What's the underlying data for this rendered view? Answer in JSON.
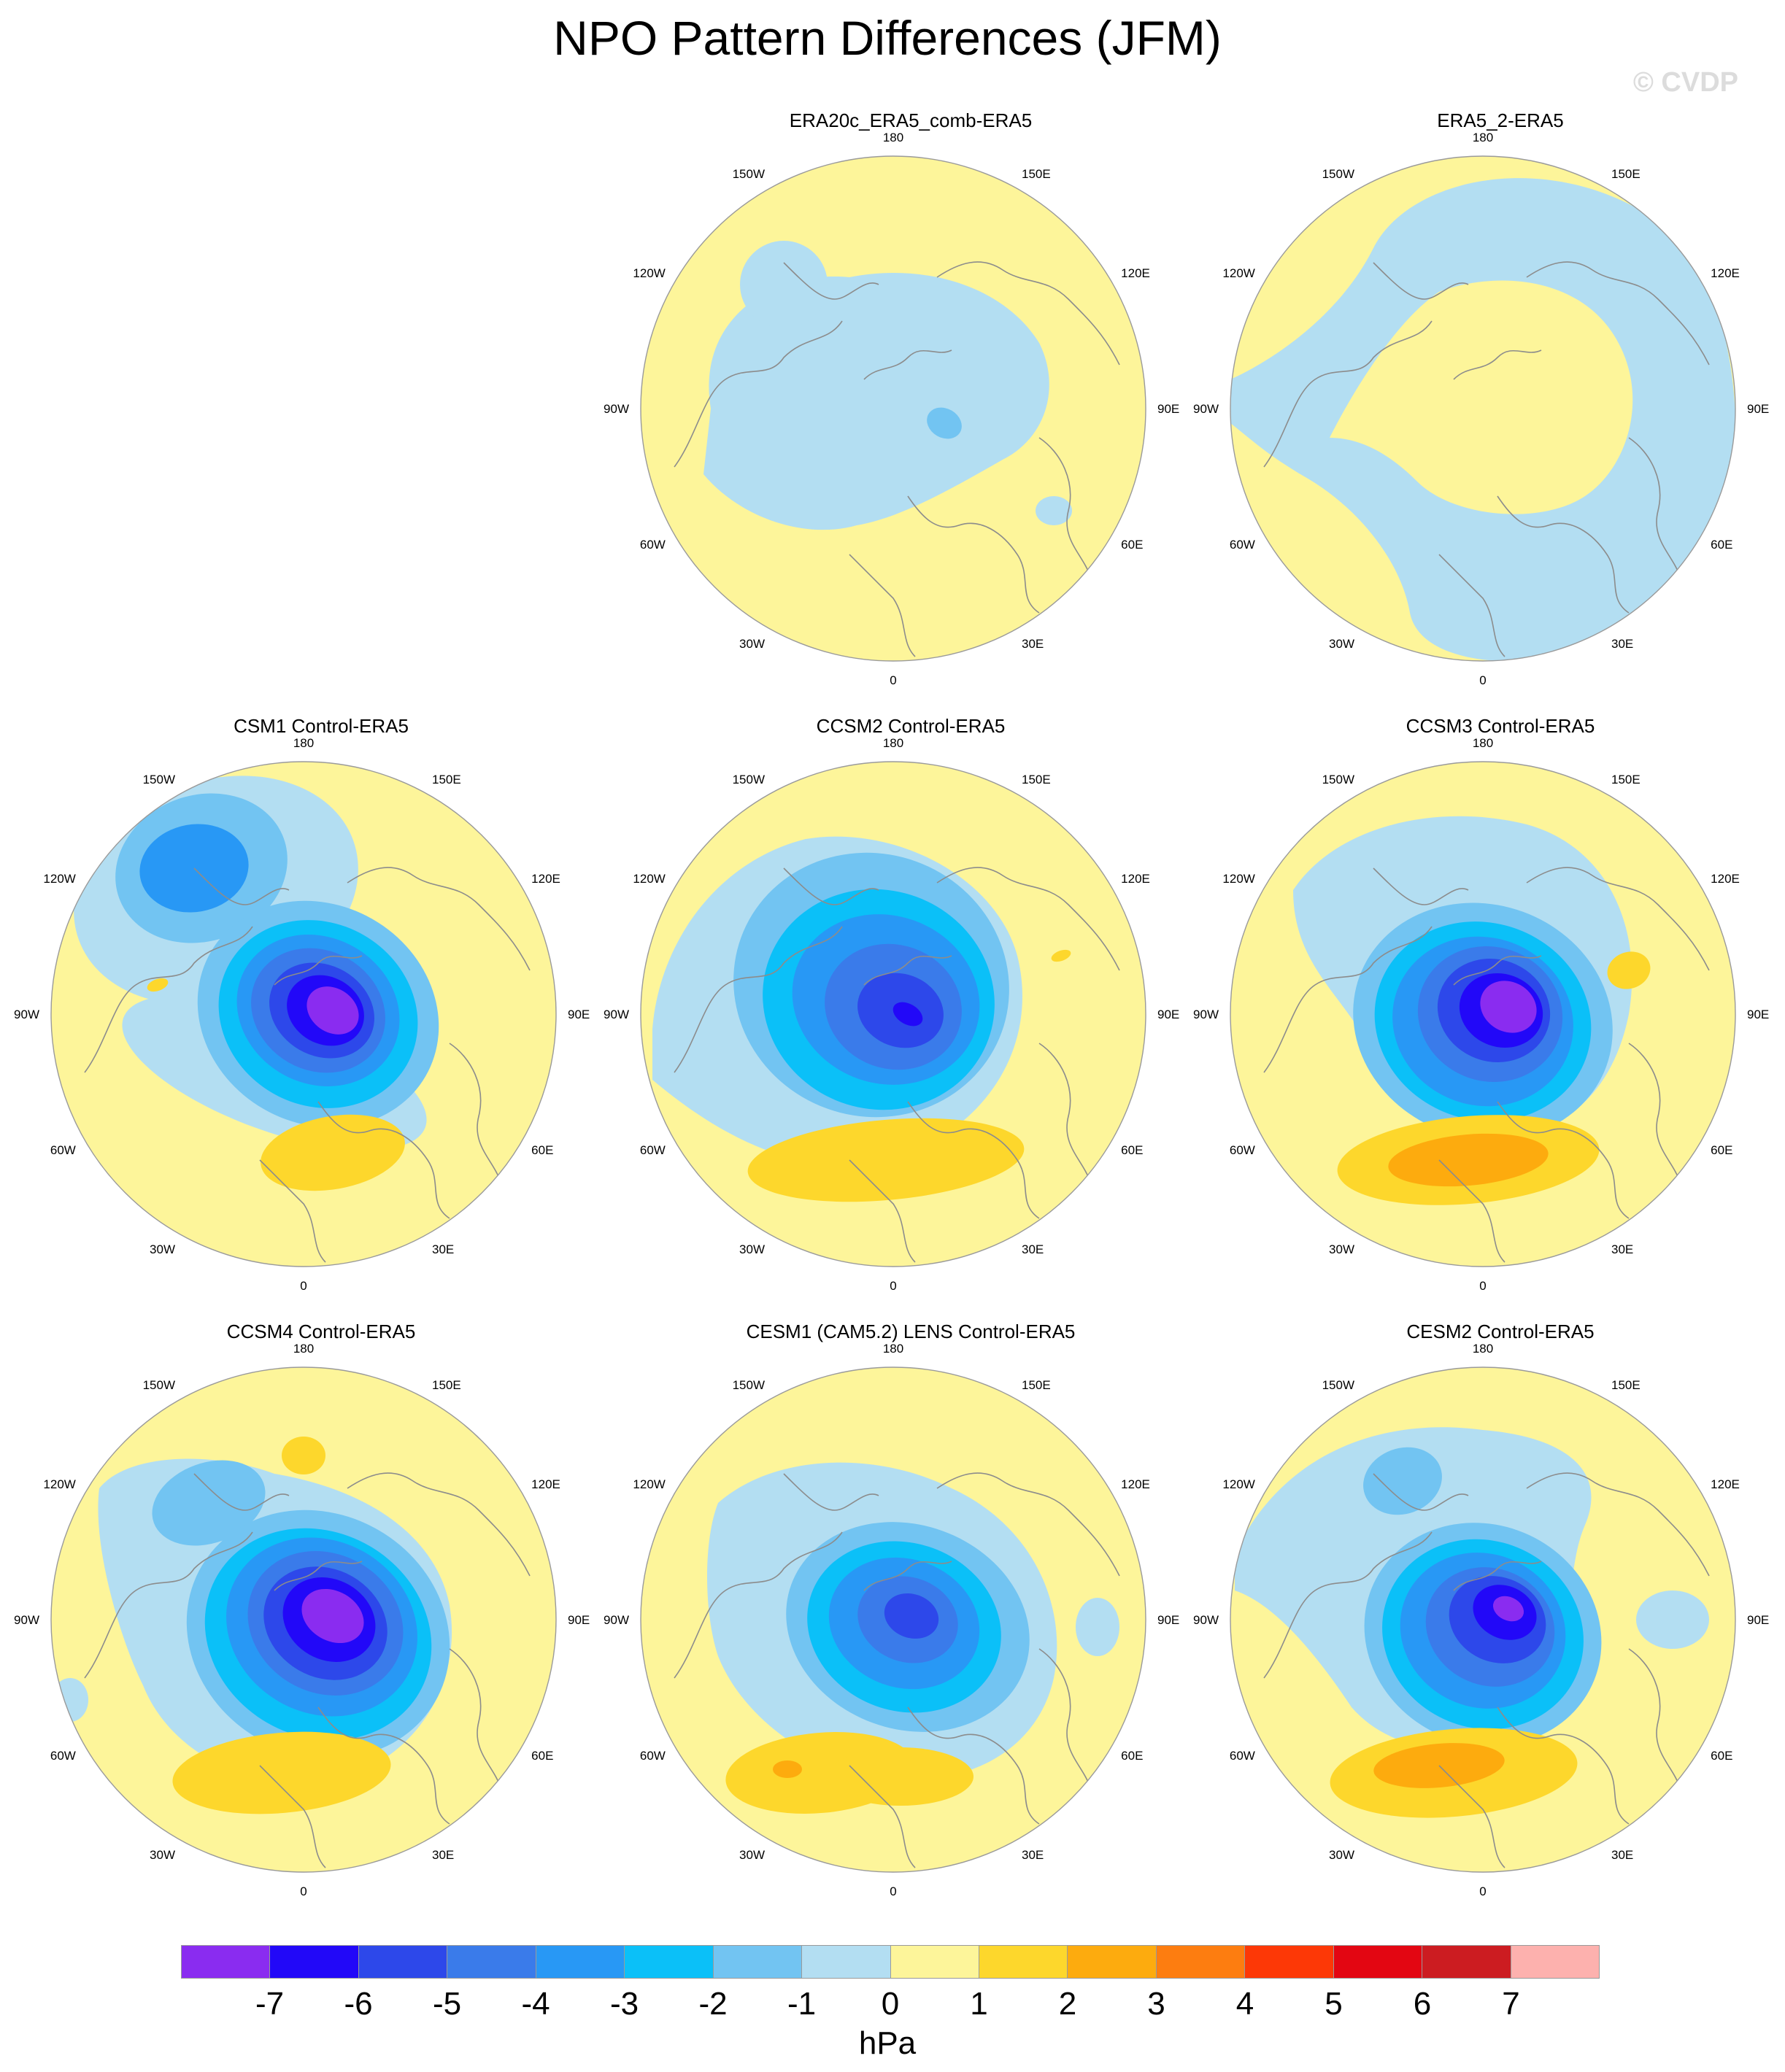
{
  "title": "NPO Pattern Differences (JFM)",
  "watermark": "© CVDP",
  "units": "hPa",
  "longitude_labels": [
    "180",
    "150E",
    "120E",
    "90E",
    "60E",
    "30E",
    "0",
    "30W",
    "60W",
    "90W",
    "120W",
    "150W"
  ],
  "colors": {
    "scale": [
      "#8a2cf0",
      "#2208f8",
      "#2d48ea",
      "#3a7bea",
      "#2898f5",
      "#0bc0f8",
      "#72c4f2",
      "#b3def2",
      "#fdf59a",
      "#fdd72c",
      "#fdab0e",
      "#fd7d10",
      "#fd3806",
      "#e30612",
      "#cc1c21",
      "#fdb1ae"
    ],
    "coast": "#8c8c8c",
    "outline": "#9a9a9a"
  },
  "colorbar": {
    "labels": [
      "-7",
      "-6",
      "-5",
      "-4",
      "-3",
      "-2",
      "-1",
      "0",
      "1",
      "2",
      "3",
      "4",
      "5",
      "6",
      "7"
    ]
  },
  "panels": [
    {
      "id": "era20c",
      "title": "ERA20c_ERA5_comb-ERA5",
      "row": 0,
      "col": 1
    },
    {
      "id": "era5_2",
      "title": "ERA5_2-ERA5",
      "row": 0,
      "col": 2
    },
    {
      "id": "csm1",
      "title": "CSM1 Control-ERA5",
      "row": 1,
      "col": 0
    },
    {
      "id": "ccsm2",
      "title": "CCSM2 Control-ERA5",
      "row": 1,
      "col": 1
    },
    {
      "id": "ccsm3",
      "title": "CCSM3 Control-ERA5",
      "row": 1,
      "col": 2
    },
    {
      "id": "ccsm4",
      "title": "CCSM4 Control-ERA5",
      "row": 2,
      "col": 0
    },
    {
      "id": "cesm1",
      "title": "CESM1 (CAM5.2) LENS Control-ERA5",
      "row": 2,
      "col": 1
    },
    {
      "id": "cesm2",
      "title": "CESM2 Control-ERA5",
      "row": 2,
      "col": 2
    }
  ]
}
